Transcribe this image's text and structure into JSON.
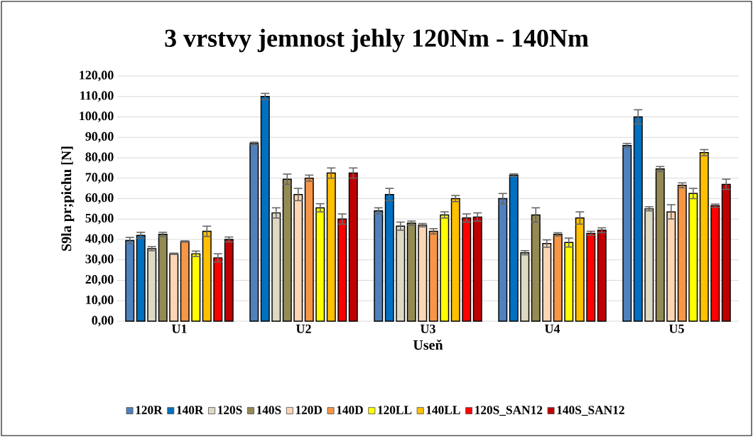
{
  "chart_data": {
    "type": "bar",
    "title": "3 vrstvy jemnost jehly 120Nm - 140Nm",
    "xlabel": "Useň",
    "ylabel": "S9la pr;pichu [N]",
    "categories": [
      "U1",
      "U2",
      "U3",
      "U4",
      "U5"
    ],
    "series": [
      {
        "name": "120R",
        "color": "#4f81bd",
        "values": [
          39.5,
          87,
          54,
          60,
          86
        ],
        "errors": [
          1.5,
          0.6,
          1.5,
          2.5,
          1
        ]
      },
      {
        "name": "140R",
        "color": "#0070c0",
        "values": [
          42,
          110,
          62,
          71.5,
          100
        ],
        "errors": [
          1.5,
          1.5,
          3,
          0.6,
          3.5
        ]
      },
      {
        "name": "120S",
        "color": "#ddd9c3",
        "values": [
          35.5,
          53,
          46.5,
          33.5,
          55
        ],
        "errors": [
          1,
          2.5,
          2,
          1,
          1
        ]
      },
      {
        "name": "140S",
        "color": "#948a54",
        "values": [
          42.5,
          69.5,
          48,
          52,
          74.5
        ],
        "errors": [
          1,
          2.5,
          1,
          3.5,
          1.2
        ]
      },
      {
        "name": "120D",
        "color": "#fcd5b5",
        "values": [
          33,
          62,
          47,
          38,
          53.5
        ],
        "errors": [
          0.3,
          3,
          0.8,
          1.8,
          3.5
        ]
      },
      {
        "name": "140D",
        "color": "#f79646",
        "values": [
          39,
          70,
          44,
          42.5,
          66.5
        ],
        "errors": [
          0.3,
          1.5,
          1.3,
          0.8,
          1.2
        ]
      },
      {
        "name": "120LL",
        "color": "#ffff00",
        "values": [
          33,
          55.5,
          52,
          38.5,
          62.5
        ],
        "errors": [
          1.3,
          2,
          1.5,
          2.2,
          2.5
        ]
      },
      {
        "name": "140LL",
        "color": "#ffc000",
        "values": [
          44,
          72.5,
          60,
          50.5,
          82.5
        ],
        "errors": [
          2.5,
          2.5,
          1.5,
          3,
          1.5
        ]
      },
      {
        "name": "120S_SAN12",
        "color": "#ff0000",
        "values": [
          31,
          50,
          50.5,
          43,
          56.5
        ],
        "errors": [
          2,
          2.5,
          2,
          1,
          0.8
        ]
      },
      {
        "name": "140S_SAN12",
        "color": "#c00000",
        "values": [
          40,
          72.5,
          51,
          44.5,
          67
        ],
        "errors": [
          1.2,
          2.5,
          2,
          1.2,
          2.5
        ]
      }
    ],
    "ylim": [
      0,
      120
    ],
    "yticks": [
      {
        "value": 0,
        "label": "0,00"
      },
      {
        "value": 10,
        "label": "10,00"
      },
      {
        "value": 20,
        "label": "20,00"
      },
      {
        "value": 30,
        "label": "30,00"
      },
      {
        "value": 40,
        "label": "40,00"
      },
      {
        "value": 50,
        "label": "50,00"
      },
      {
        "value": 60,
        "label": "60,00"
      },
      {
        "value": 70,
        "label": "70,00"
      },
      {
        "value": 80,
        "label": "80,00"
      },
      {
        "value": 90,
        "label": "90,00"
      },
      {
        "value": 100,
        "label": "100,00"
      },
      {
        "value": 110,
        "label": "110,00"
      },
      {
        "value": 120,
        "label": "120,00"
      }
    ],
    "grid": "y",
    "legend": "bottom"
  }
}
